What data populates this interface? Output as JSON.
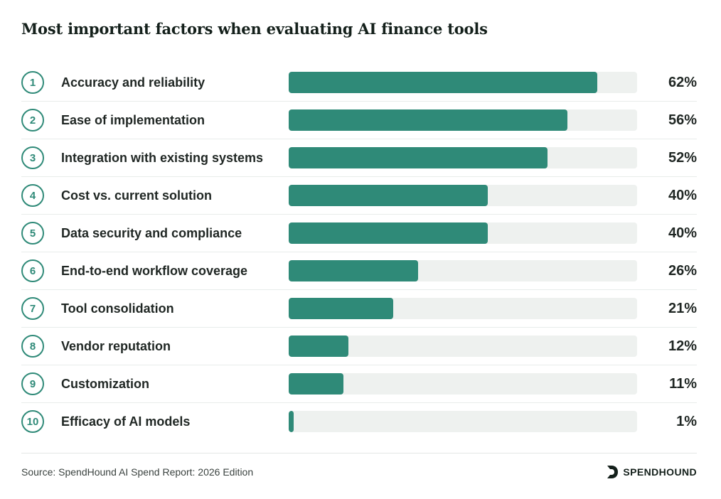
{
  "chart_data": {
    "type": "bar",
    "orientation": "horizontal",
    "title": "Most important factors when evaluating AI finance tools",
    "categories": [
      "Accuracy and reliability",
      "Ease of implementation",
      "Integration with existing systems",
      "Cost vs. current solution",
      "Data security and compliance",
      "End-to-end workflow coverage",
      "Tool consolidation",
      "Vendor reputation",
      "Customization",
      "Efficacy of AI models"
    ],
    "ranks": [
      "1",
      "2",
      "3",
      "4",
      "5",
      "6",
      "7",
      "8",
      "9",
      "10"
    ],
    "values": [
      62,
      56,
      52,
      40,
      40,
      26,
      21,
      12,
      11,
      1
    ],
    "value_labels": [
      "62%",
      "56%",
      "52%",
      "40%",
      "40%",
      "26%",
      "21%",
      "12%",
      "11%",
      "1%"
    ],
    "xlim": [
      0,
      70
    ],
    "grid": false,
    "bar_color": "#2f8a78",
    "track_color": "#eef1ef"
  },
  "footer": {
    "source": "Source: SpendHound AI Spend Report: 2026 Edition",
    "brand": "SPENDHOUND",
    "brand_icon": "spendhound-logo-icon"
  }
}
